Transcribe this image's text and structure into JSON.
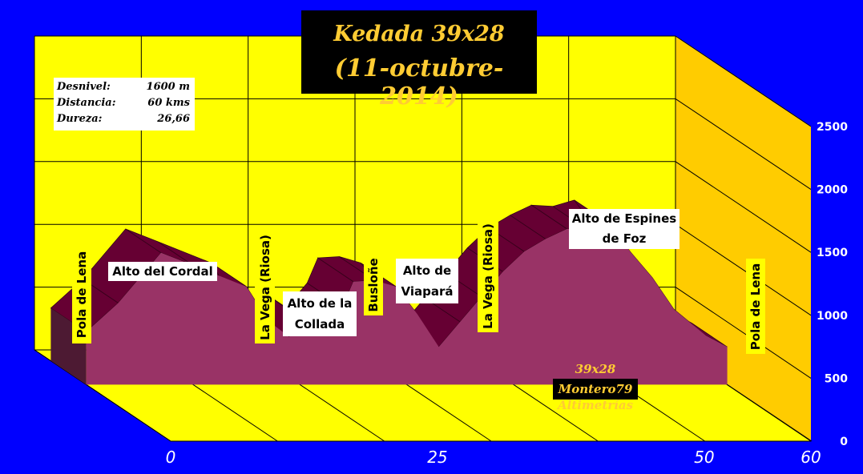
{
  "title": {
    "line1": "Kedada 39x28",
    "line2": "(11-octubre-2014)"
  },
  "stats": [
    {
      "label": "Desnivel:",
      "value": "1600 m"
    },
    {
      "label": "Distancia:",
      "value": "60 kms"
    },
    {
      "label": "Dureza:",
      "value": "26,66"
    }
  ],
  "credits": {
    "line1": "39x28",
    "line2": "Montero79",
    "line3": "Altimetrías"
  },
  "colors": {
    "background": "#0000ff",
    "wall": "#ffff00",
    "profile_front": "#993366",
    "profile_top": "#660033",
    "title_box": "#000000",
    "title_text": "#ffcc33"
  },
  "chart_data": {
    "type": "area",
    "style": "3d",
    "xlabel": "",
    "ylabel": "",
    "x_ticks": [
      "0",
      "25",
      "50",
      "60"
    ],
    "y_ticks": [
      "0",
      "500",
      "1000",
      "1500",
      "2000",
      "2500"
    ],
    "xlim": [
      0,
      60
    ],
    "ylim": [
      0,
      2500
    ],
    "grid": true,
    "series": [
      {
        "x": [
          0,
          3,
          7,
          10,
          15,
          17,
          19,
          20,
          22,
          24,
          25,
          27,
          29,
          31,
          33,
          35,
          37,
          39,
          41,
          43,
          45,
          47,
          49,
          51,
          53,
          55,
          58,
          60
        ],
        "y": [
          420,
          650,
          1050,
          950,
          780,
          510,
          380,
          540,
          420,
          620,
          820,
          830,
          780,
          560,
          300,
          500,
          700,
          900,
          1060,
          1160,
          1240,
          1230,
          1280,
          1050,
          850,
          600,
          390,
          300
        ]
      }
    ],
    "annotations": [
      {
        "text": "Pola de Lena",
        "x": 0,
        "orientation": "vertical"
      },
      {
        "text": "Alto del Cordal",
        "x": 7
      },
      {
        "text": "La Vega (Riosa)",
        "x": 15,
        "orientation": "vertical"
      },
      {
        "text": "Alto de la Collada",
        "x": 19
      },
      {
        "text": "Busloñe",
        "x": 22,
        "orientation": "vertical"
      },
      {
        "text": "Alto de Viapará",
        "x": 27
      },
      {
        "text": "La Vega (Riosa)",
        "x": 33,
        "orientation": "vertical"
      },
      {
        "text": "Alto de Espines de Foz",
        "x": 49
      },
      {
        "text": "Pola de Lena",
        "x": 60,
        "orientation": "vertical"
      }
    ]
  }
}
